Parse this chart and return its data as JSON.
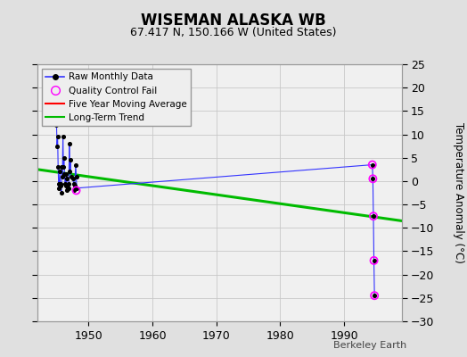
{
  "title": "WISEMAN ALASKA WB",
  "subtitle": "67.417 N, 150.166 W (United States)",
  "ylabel_right": "Temperature Anomaly (°C)",
  "attribution": "Berkeley Earth",
  "background_color": "#e0e0e0",
  "plot_bg_color": "#f0f0f0",
  "ylim": [
    -30,
    25
  ],
  "yticks": [
    -30,
    -25,
    -20,
    -15,
    -10,
    -5,
    0,
    5,
    10,
    15,
    20,
    25
  ],
  "xlim": [
    1942,
    1999
  ],
  "xticks": [
    1950,
    1960,
    1970,
    1980,
    1990
  ],
  "raw_x": [
    1945.0,
    1945.083,
    1945.167,
    1945.25,
    1945.333,
    1945.417,
    1945.5,
    1945.583,
    1945.667,
    1945.75,
    1945.833,
    1945.917,
    1946.0,
    1946.083,
    1946.167,
    1946.25,
    1946.333,
    1946.417,
    1946.5,
    1946.583,
    1946.667,
    1946.75,
    1946.833,
    1946.917,
    1947.0,
    1947.083,
    1947.167,
    1947.25,
    1947.583,
    1947.667,
    1947.75,
    1947.833,
    1948.0,
    1948.083,
    1948.167,
    1994.417,
    1994.5,
    1994.583,
    1994.667,
    1994.75
  ],
  "raw_y": [
    12.0,
    7.5,
    9.5,
    3.0,
    -1.5,
    -0.5,
    2.0,
    -0.5,
    -1.0,
    -2.5,
    3.0,
    1.0,
    9.5,
    3.0,
    5.0,
    1.5,
    -0.5,
    -1.0,
    1.5,
    0.5,
    -2.0,
    -1.5,
    -0.5,
    -1.5,
    8.0,
    2.0,
    4.5,
    1.0,
    0.5,
    -0.5,
    -2.0,
    -1.0,
    3.5,
    1.0,
    -1.5,
    3.5,
    0.5,
    -7.5,
    -17.0,
    -24.5
  ],
  "qc_x": [
    1948.083,
    1994.417,
    1994.5,
    1994.583,
    1994.667,
    1994.75
  ],
  "qc_y": [
    -2.0,
    3.5,
    0.5,
    -7.5,
    -17.0,
    -24.5
  ],
  "trend_x": [
    1942,
    1999
  ],
  "trend_y": [
    2.5,
    -8.5
  ],
  "grid_color": "#c8c8c8",
  "raw_line_color": "#3333ff",
  "raw_marker_color": "#000000",
  "qc_marker_color": "#ff00ff",
  "trend_color": "#00bb00",
  "five_year_color": "#ff0000",
  "legend_labels": [
    "Raw Monthly Data",
    "Quality Control Fail",
    "Five Year Moving Average",
    "Long-Term Trend"
  ]
}
